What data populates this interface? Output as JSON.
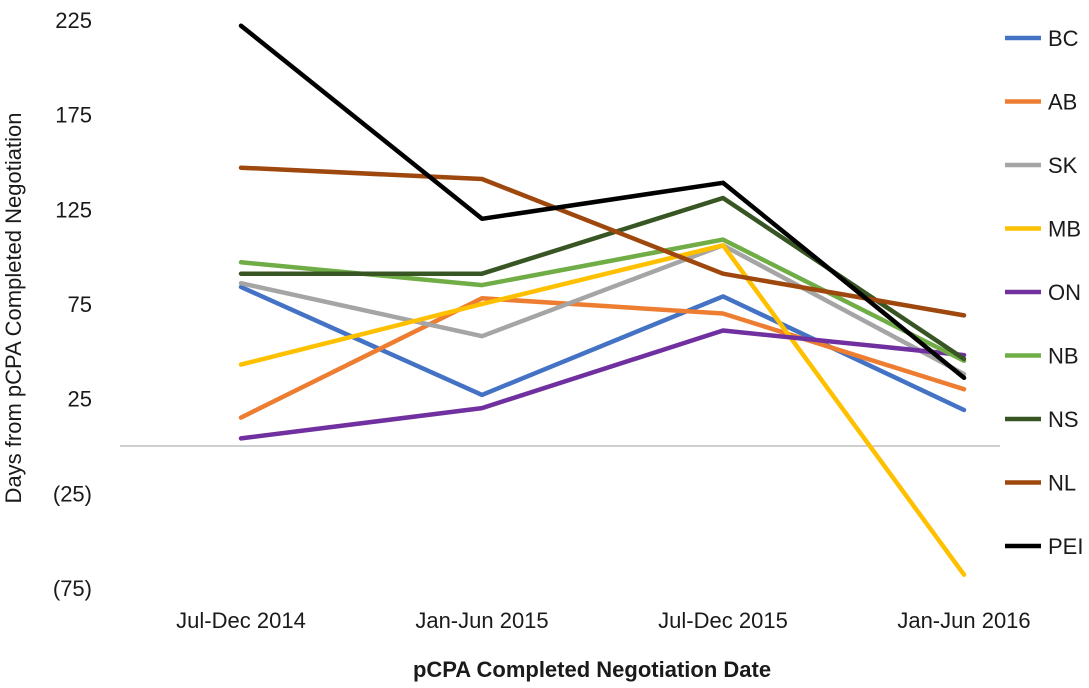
{
  "chart_data": {
    "type": "line",
    "categories": [
      "Jul-Dec 2014",
      "Jan-Jun 2015",
      "Jul-Dec 2015",
      "Jan-Jun 2016"
    ],
    "ylabel": "Days from pCPA Completed Negotiation",
    "xlabel": "pCPA Completed Negotiation Date",
    "ylim": [
      -75,
      225
    ],
    "yticks": [
      225,
      175,
      125,
      75,
      25,
      -25,
      -75
    ],
    "ytick_labels": [
      "225",
      "175",
      "125",
      "75",
      "25",
      "(25)",
      "(75)"
    ],
    "grid": false,
    "legend_position": "right",
    "series": [
      {
        "name": "BC",
        "color": "#4472C4",
        "values": [
          84,
          27,
          79,
          19
        ]
      },
      {
        "name": "AB",
        "color": "#ED7D31",
        "values": [
          15,
          78,
          70,
          30
        ]
      },
      {
        "name": "SK",
        "color": "#A5A5A5",
        "values": [
          86,
          58,
          106,
          38
        ]
      },
      {
        "name": "MB",
        "color": "#FFC000",
        "values": [
          43,
          75,
          106,
          -68
        ]
      },
      {
        "name": "ON",
        "color": "#7030A0",
        "values": [
          4,
          20,
          61,
          48
        ]
      },
      {
        "name": "NB",
        "color": "#70AD47",
        "values": [
          97,
          85,
          109,
          45
        ]
      },
      {
        "name": "NS",
        "color": "#375623",
        "values": [
          91,
          91,
          131,
          46
        ]
      },
      {
        "name": "NL",
        "color": "#9E480E",
        "values": [
          147,
          141,
          91,
          69
        ]
      },
      {
        "name": "PEI",
        "color": "#000000",
        "values": [
          222,
          120,
          139,
          36
        ]
      }
    ]
  }
}
